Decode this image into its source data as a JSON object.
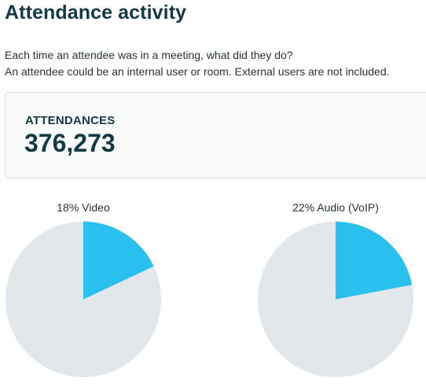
{
  "title": "Attendance activity",
  "description": [
    "Each time an attendee was in a meeting, what did they do?",
    "An attendee could be an internal user or room. External users are not included."
  ],
  "stat": {
    "label": "ATTENDANCES",
    "value": "376,273"
  },
  "colors": {
    "highlight": "#29bfef",
    "remainder": "#e1e7ea",
    "title": "#123a45"
  },
  "pies": [
    {
      "caption": "18% Video",
      "percent": 18
    },
    {
      "caption": "22% Audio (VoIP)",
      "percent": 22
    }
  ]
}
